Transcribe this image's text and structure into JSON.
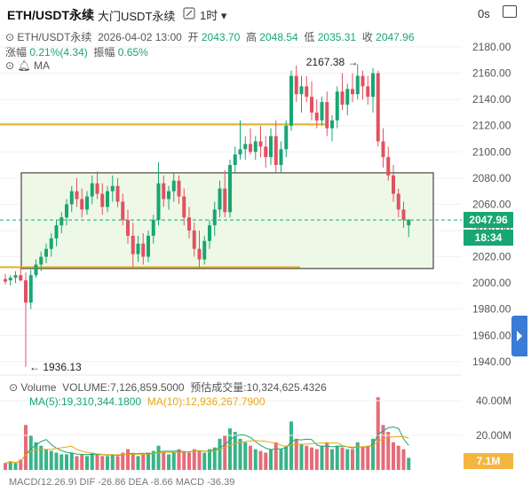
{
  "header": {
    "title": "ETH/USDT永续",
    "subtitle": "大门USDT永续",
    "interval": "1时 ▾",
    "countdown": "0s"
  },
  "ohlc": {
    "symbol": "ETH/USDT永续",
    "datetime": "2026-04-02 13:00",
    "open_label": "开",
    "open": "2043.70",
    "high_label": "高",
    "high": "2048.54",
    "low_label": "低",
    "low": "2035.31",
    "close_label": "收",
    "close": "2047.96",
    "change_label": "涨幅",
    "change": "0.21%(4.34)",
    "amplitude_label": "振幅",
    "amplitude": "0.65%"
  },
  "indicator": {
    "label": "MA"
  },
  "price_tag": "2047.96",
  "time_tag": "18:34",
  "volume": {
    "title": "Volume",
    "volume_text": "VOLUME:7,126,859.5000",
    "estimate_text": "预估成交量:10,324,625.4326",
    "ma5_text": "MA(5):19,310,344.1800",
    "ma10_text": "MA(10):12,936,267.7900",
    "tag": "7.1M",
    "axis_labels": [
      "40.00M",
      "20.00M"
    ]
  },
  "macd": {
    "text": "MACD(12,26,9)  DIF -26.86  DEA -8.66  MACD -36.39"
  },
  "colors": {
    "up": "#18a673",
    "down": "#e05260",
    "box_fill": "#eef8e6",
    "level_line": "#e2b22e",
    "ma5": "#18a673",
    "ma10": "#e6a817",
    "accent": "#3a7bd5"
  },
  "chart_data": {
    "type": "candlestick",
    "ylim": [
      1925,
      2190
    ],
    "y_ticks": [
      2180,
      2160,
      2140,
      2120,
      2100,
      2080,
      2060,
      2040,
      2020,
      2000,
      1980,
      1960,
      1940
    ],
    "annotations": {
      "high": "2167.38",
      "low": "1936.13"
    },
    "levels": [
      2121,
      2012
    ],
    "range_box": {
      "top": 2084,
      "bottom": 2011
    },
    "candles": [
      [
        2003,
        2007,
        1999,
        2001
      ],
      [
        2002,
        2006,
        1998,
        2004
      ],
      [
        2004,
        2009,
        2000,
        2006
      ],
      [
        2006,
        2012,
        2001,
        2002
      ],
      [
        2002,
        2008,
        1936,
        1985
      ],
      [
        1985,
        2010,
        1980,
        2006
      ],
      [
        2006,
        2018,
        2004,
        2014
      ],
      [
        2014,
        2024,
        2009,
        2020
      ],
      [
        2020,
        2030,
        2015,
        2026
      ],
      [
        2026,
        2038,
        2020,
        2034
      ],
      [
        2034,
        2048,
        2028,
        2044
      ],
      [
        2044,
        2054,
        2038,
        2050
      ],
      [
        2050,
        2064,
        2044,
        2060
      ],
      [
        2060,
        2074,
        2054,
        2070
      ],
      [
        2070,
        2080,
        2058,
        2064
      ],
      [
        2064,
        2072,
        2050,
        2056
      ],
      [
        2056,
        2070,
        2052,
        2066
      ],
      [
        2066,
        2082,
        2060,
        2076
      ],
      [
        2076,
        2085,
        2064,
        2068
      ],
      [
        2068,
        2076,
        2052,
        2058
      ],
      [
        2058,
        2074,
        2054,
        2070
      ],
      [
        2070,
        2082,
        2062,
        2074
      ],
      [
        2074,
        2080,
        2058,
        2062
      ],
      [
        2062,
        2068,
        2044,
        2048
      ],
      [
        2048,
        2056,
        2030,
        2036
      ],
      [
        2036,
        2046,
        2012,
        2022
      ],
      [
        2022,
        2036,
        2016,
        2030
      ],
      [
        2030,
        2038,
        2014,
        2020
      ],
      [
        2020,
        2040,
        2016,
        2036
      ],
      [
        2036,
        2052,
        2030,
        2048
      ],
      [
        2048,
        2092,
        2044,
        2076
      ],
      [
        2076,
        2082,
        2058,
        2064
      ],
      [
        2064,
        2074,
        2056,
        2070
      ],
      [
        2070,
        2084,
        2062,
        2078
      ],
      [
        2078,
        2082,
        2060,
        2066
      ],
      [
        2066,
        2072,
        2044,
        2050
      ],
      [
        2050,
        2058,
        2034,
        2040
      ],
      [
        2040,
        2046,
        2020,
        2026
      ],
      [
        2026,
        2040,
        2012,
        2018
      ],
      [
        2018,
        2036,
        2014,
        2032
      ],
      [
        2032,
        2048,
        2026,
        2044
      ],
      [
        2044,
        2062,
        2036,
        2056
      ],
      [
        2056,
        2078,
        2050,
        2072
      ],
      [
        2072,
        2086,
        2050,
        2054
      ],
      [
        2054,
        2094,
        2050,
        2090
      ],
      [
        2090,
        2104,
        2084,
        2098
      ],
      [
        2098,
        2124,
        2094,
        2102
      ],
      [
        2102,
        2112,
        2094,
        2106
      ],
      [
        2106,
        2118,
        2098,
        2100
      ],
      [
        2100,
        2112,
        2094,
        2108
      ],
      [
        2108,
        2120,
        2096,
        2104
      ],
      [
        2104,
        2112,
        2088,
        2096
      ],
      [
        2096,
        2118,
        2090,
        2112
      ],
      [
        2112,
        2124,
        2084,
        2090
      ],
      [
        2090,
        2108,
        2084,
        2102
      ],
      [
        2102,
        2124,
        2096,
        2120
      ],
      [
        2120,
        2162,
        2116,
        2158
      ],
      [
        2158,
        2166,
        2138,
        2144
      ],
      [
        2144,
        2158,
        2130,
        2150
      ],
      [
        2150,
        2158,
        2138,
        2142
      ],
      [
        2142,
        2154,
        2124,
        2130
      ],
      [
        2130,
        2140,
        2118,
        2124
      ],
      [
        2124,
        2142,
        2120,
        2138
      ],
      [
        2138,
        2146,
        2112,
        2118
      ],
      [
        2118,
        2128,
        2108,
        2124
      ],
      [
        2124,
        2150,
        2118,
        2146
      ],
      [
        2146,
        2160,
        2132,
        2136
      ],
      [
        2136,
        2152,
        2128,
        2148
      ],
      [
        2148,
        2160,
        2138,
        2144
      ],
      [
        2144,
        2167,
        2140,
        2158
      ],
      [
        2158,
        2162,
        2140,
        2150
      ],
      [
        2150,
        2158,
        2136,
        2142
      ],
      [
        2142,
        2164,
        2130,
        2160
      ],
      [
        2160,
        2162,
        2104,
        2108
      ],
      [
        2108,
        2118,
        2088,
        2096
      ],
      [
        2096,
        2104,
        2078,
        2082
      ],
      [
        2082,
        2090,
        2062,
        2068
      ],
      [
        2068,
        2072,
        2050,
        2056
      ],
      [
        2056,
        2062,
        2042,
        2048
      ],
      [
        2044,
        2049,
        2035,
        2048
      ]
    ],
    "volumes": [
      4,
      5,
      4,
      6,
      26,
      20,
      16,
      14,
      12,
      11,
      10,
      9,
      9,
      10,
      8,
      9,
      8,
      10,
      9,
      8,
      8,
      9,
      8,
      10,
      12,
      9,
      8,
      9,
      10,
      11,
      14,
      10,
      9,
      10,
      12,
      11,
      10,
      12,
      11,
      10,
      12,
      13,
      18,
      20,
      24,
      22,
      18,
      16,
      14,
      12,
      11,
      10,
      12,
      16,
      12,
      14,
      28,
      18,
      15,
      14,
      13,
      12,
      14,
      16,
      12,
      14,
      13,
      12,
      12,
      16,
      13,
      14,
      18,
      42,
      26,
      22,
      16,
      14,
      12,
      7
    ]
  }
}
